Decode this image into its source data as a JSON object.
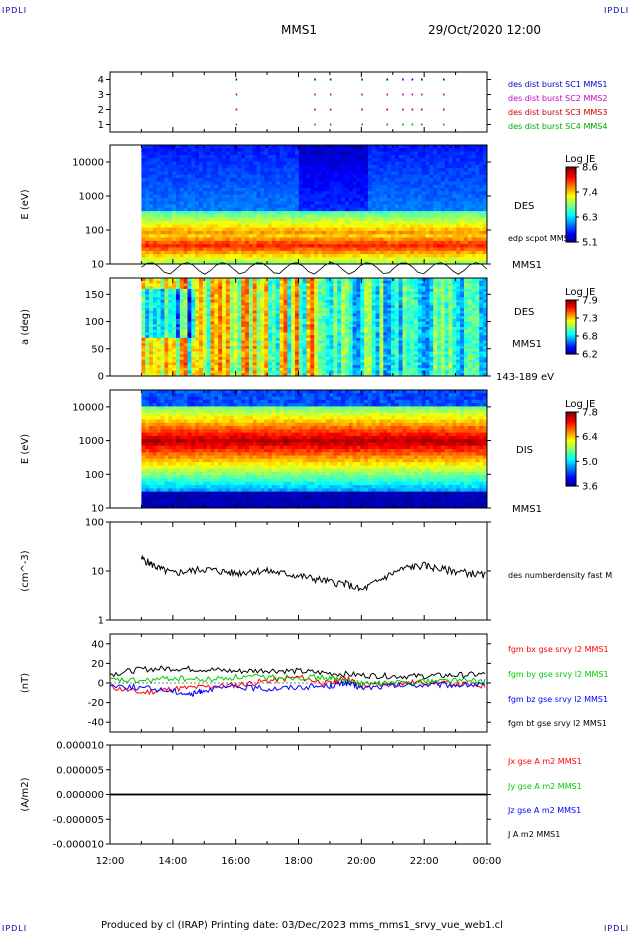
{
  "corners": {
    "tl": "IPDLI",
    "tr": "IPDLI",
    "bl": "IPDLI",
    "br": "IPDLI"
  },
  "header": {
    "title": "MMS1",
    "datetime": "29/Oct/2020 12:00"
  },
  "footer": {
    "text": "Produced by cl (IRAP)   Printing date: 03/Dec/2023   mms_mms1_srvy_vue_web1.cl"
  },
  "chart_data": [
    {
      "type": "scatter",
      "ylim": [
        0.5,
        4.5
      ],
      "yticks": [
        "1",
        "2",
        "3",
        "4"
      ],
      "legend": [
        {
          "text": "des dist burst SC1 MMS1",
          "color": "#0000cc"
        },
        {
          "text": "des dist burst SC2 MMS2",
          "color": "#cc00cc"
        },
        {
          "text": "des dist burst SC3 MMS3",
          "color": "#cc0000"
        },
        {
          "text": "des dist burst SC4 MMS4",
          "color": "#00aa00"
        }
      ]
    },
    {
      "type": "heatmap",
      "ylabel": "E (eV)",
      "yscale": "log",
      "yticks": [
        "10000",
        "1000",
        "100",
        "10"
      ],
      "right_labels": [
        "DES",
        "edp scpot MMS1",
        "MMS1"
      ],
      "colorbar": {
        "title": "Log JE",
        "ticks": [
          "8.6",
          "7.4",
          "6.3",
          "5.1"
        ]
      }
    },
    {
      "type": "heatmap",
      "ylabel": "a (deg)",
      "ylim": [
        0,
        180
      ],
      "yticks": [
        "150",
        "100",
        "50",
        "0"
      ],
      "right_labels": [
        "DES",
        "MMS1",
        "143-189 eV"
      ],
      "colorbar": {
        "title": "Log JE",
        "ticks": [
          "7.9",
          "7.3",
          "6.8",
          "6.2"
        ]
      }
    },
    {
      "type": "heatmap",
      "ylabel": "E (eV)",
      "yscale": "log",
      "yticks": [
        "10000",
        "1000",
        "100",
        "10"
      ],
      "right_labels": [
        "DIS",
        "MMS1"
      ],
      "colorbar": {
        "title": "Log JE",
        "ticks": [
          "7.8",
          "6.4",
          "5.0",
          "3.6"
        ]
      }
    },
    {
      "type": "line",
      "ylabel": "(cm^-3)",
      "yscale": "log",
      "ylim": [
        1,
        100
      ],
      "yticks": [
        "100",
        "10",
        "1"
      ],
      "series": [
        {
          "name": "des numberdensity fast M",
          "color": "#000000",
          "x": [
            13.0,
            13.3,
            13.6,
            14.0,
            14.5,
            15.0,
            15.5,
            16.0,
            16.5,
            17.0,
            17.5,
            18.0,
            18.5,
            19.0,
            19.5,
            20.0,
            20.5,
            21.0,
            21.5,
            22.0,
            22.5,
            23.0,
            23.5,
            24.0
          ],
          "y": [
            18,
            14,
            11,
            9,
            10,
            11,
            10,
            9,
            10,
            10,
            9,
            8,
            7,
            6,
            5.5,
            4,
            6,
            9,
            12,
            13,
            11,
            10,
            9,
            8
          ]
        }
      ]
    },
    {
      "type": "line",
      "ylabel": "(nT)",
      "ylim": [
        -50,
        50
      ],
      "yticks": [
        "40",
        "20",
        "0",
        "-20",
        "-40"
      ],
      "series": [
        {
          "name": "fgm bx gse srvy l2 MMS1",
          "color": "#ff0000",
          "x": [
            12.0,
            13.0,
            14.0,
            15.0,
            16.0,
            17.0,
            18.0,
            19.0,
            19.5,
            20.0,
            21.0,
            22.0,
            23.0,
            24.0
          ],
          "y": [
            -4,
            -10,
            -6,
            -4,
            -2,
            2,
            6,
            -1,
            6,
            -3,
            -1,
            1,
            -1,
            -3
          ]
        },
        {
          "name": "fgm by gse srvy l2 MMS1",
          "color": "#00cc00",
          "x": [
            12.0,
            13.0,
            14.0,
            15.0,
            16.0,
            17.0,
            18.0,
            19.0,
            19.5,
            20.0,
            21.0,
            22.0,
            23.0,
            24.0
          ],
          "y": [
            3,
            2,
            5,
            3,
            6,
            6,
            6,
            5,
            2,
            -1,
            0,
            2,
            3,
            1
          ]
        },
        {
          "name": "fgm bz gse srvy l2 MMS1",
          "color": "#0000ff",
          "x": [
            12.0,
            13.0,
            14.0,
            14.6,
            15.0,
            16.0,
            17.0,
            18.0,
            19.0,
            19.5,
            20.0,
            21.0,
            22.0,
            23.0,
            24.0
          ],
          "y": [
            -2,
            -5,
            -8,
            -12,
            -7,
            -4,
            -6,
            -4,
            -3,
            0,
            -5,
            -3,
            -2,
            -2,
            -2
          ]
        },
        {
          "name": "fgm bt gse srvy l2 MMS1",
          "color": "#000000",
          "x": [
            12.0,
            13.0,
            14.0,
            15.0,
            16.0,
            17.0,
            18.0,
            19.0,
            20.0,
            21.0,
            22.0,
            23.0,
            24.0
          ],
          "y": [
            9,
            14,
            15,
            14,
            12,
            13,
            12,
            10,
            8,
            7,
            7,
            8,
            9
          ]
        }
      ]
    },
    {
      "type": "line",
      "ylabel": "(A/m2)",
      "ylim": [
        -1e-05,
        1e-05
      ],
      "yticks": [
        "0.000010",
        "0.000005",
        "0.000000",
        "-0.000005",
        "-0.000010"
      ],
      "series": [
        {
          "name": "Jx gse A m2 MMS1",
          "color": "#ff0000",
          "x": [
            12.0,
            24.0
          ],
          "y": [
            0,
            0
          ]
        },
        {
          "name": "Jy gse A m2 MMS1",
          "color": "#00cc00",
          "x": [
            12.0,
            24.0
          ],
          "y": [
            0,
            0
          ]
        },
        {
          "name": "Jz gse A m2 MMS1",
          "color": "#0000ff",
          "x": [
            12.0,
            24.0
          ],
          "y": [
            0,
            0
          ]
        },
        {
          "name": "J A m2 MMS1",
          "color": "#000000",
          "x": [
            12.0,
            24.0
          ],
          "y": [
            0,
            0
          ]
        }
      ]
    }
  ],
  "xaxis": {
    "labels": [
      "12:00",
      "14:00",
      "16:00",
      "18:00",
      "20:00",
      "22:00",
      "00:00"
    ]
  }
}
